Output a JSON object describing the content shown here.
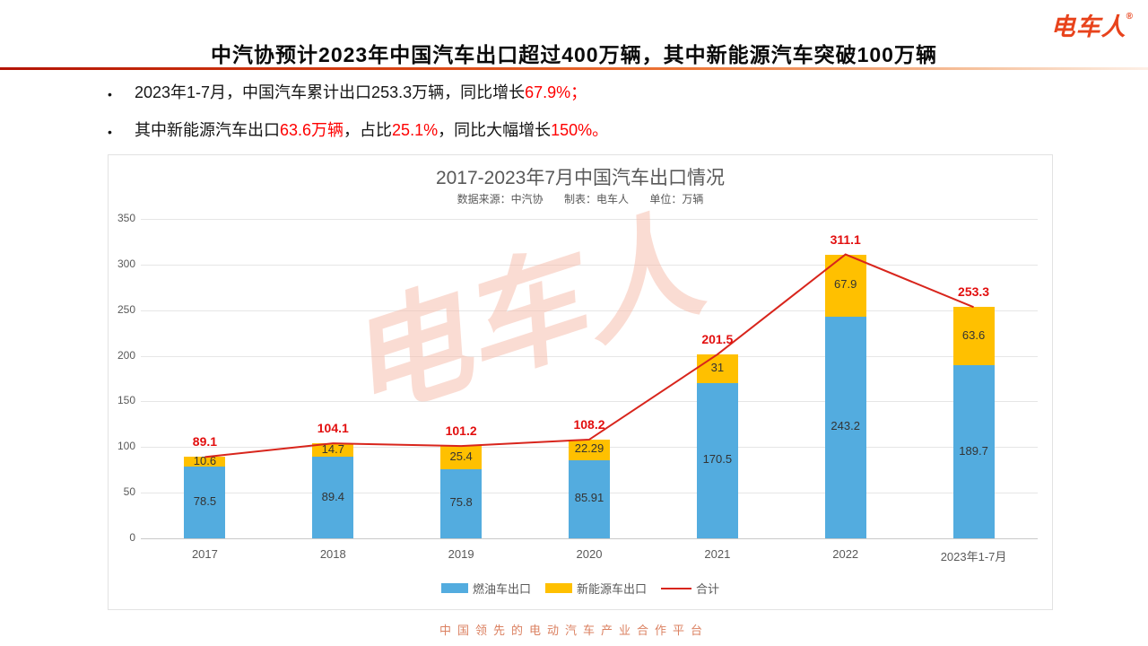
{
  "brand": {
    "logo_text": "电车人",
    "registered_mark": "®"
  },
  "header": {
    "title": "中汽协预计2023年中国汽车出口超过400万辆，其中新能源汽车突破100万辆"
  },
  "bullets": {
    "marker": "•",
    "b1": {
      "p1": "2023年1-7月，中国汽车累计出口253.3万辆，同比增长",
      "p2": "67.9%；"
    },
    "b2": {
      "p1": "其中新能源汽车出口",
      "p2": "63.6万辆",
      "p3": "，占比",
      "p4": "25.1%",
      "p5": "，同比大幅增长",
      "p6": "150%。"
    }
  },
  "chart_data": {
    "type": "bar",
    "subtype": "stacked-bars-with-total-line",
    "title": "2017-2023年7月中国汽车出口情况",
    "subtitle_parts": [
      "数据来源：中汽协",
      "制表：电车人",
      "单位：万辆"
    ],
    "categories": [
      "2017",
      "2018",
      "2019",
      "2020",
      "2021",
      "2022",
      "2023年1-7月"
    ],
    "series": [
      {
        "name": "燃油车出口",
        "color": "#53ACDF",
        "values": [
          78.5,
          89.4,
          75.8,
          85.91,
          170.5,
          243.2,
          189.7
        ]
      },
      {
        "name": "新能源车出口",
        "color": "#FFC000",
        "values": [
          10.6,
          14.7,
          25.4,
          22.29,
          31,
          67.9,
          63.6
        ]
      }
    ],
    "line_series": {
      "name": "合计",
      "color": "#D8251C",
      "values": [
        89.1,
        104.1,
        101.2,
        108.2,
        201.5,
        311.1,
        253.3
      ]
    },
    "xlabel": "",
    "ylabel": "",
    "ylim": [
      0,
      350
    ],
    "ytick_step": 50,
    "grid": true,
    "legend_position": "bottom",
    "watermark": "电车人"
  },
  "footer": {
    "tagline": "中国领先的电动汽车产业合作平台"
  }
}
